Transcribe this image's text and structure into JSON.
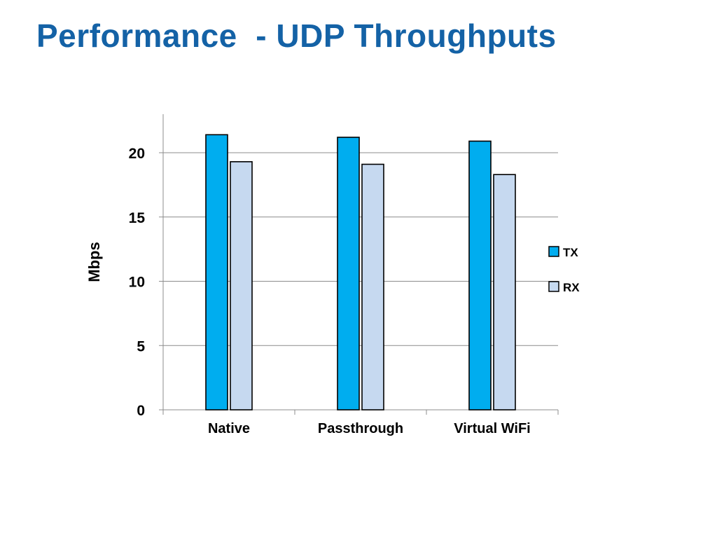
{
  "slide": {
    "title": "Performance  - UDP Throughputs"
  },
  "chart_data": {
    "type": "bar",
    "title": "",
    "xlabel": "",
    "ylabel": "Mbps",
    "categories": [
      "Native",
      "Passthrough",
      "Virtual WiFi"
    ],
    "series": [
      {
        "name": "TX",
        "values": [
          21.4,
          21.2,
          20.9
        ],
        "color": "#00adef"
      },
      {
        "name": "RX",
        "values": [
          19.3,
          19.1,
          18.3
        ],
        "color": "#c6d9f0"
      }
    ],
    "ylim": [
      0,
      23
    ],
    "yticks": [
      0,
      5,
      10,
      15,
      20
    ],
    "grid": true,
    "legend": "right"
  }
}
